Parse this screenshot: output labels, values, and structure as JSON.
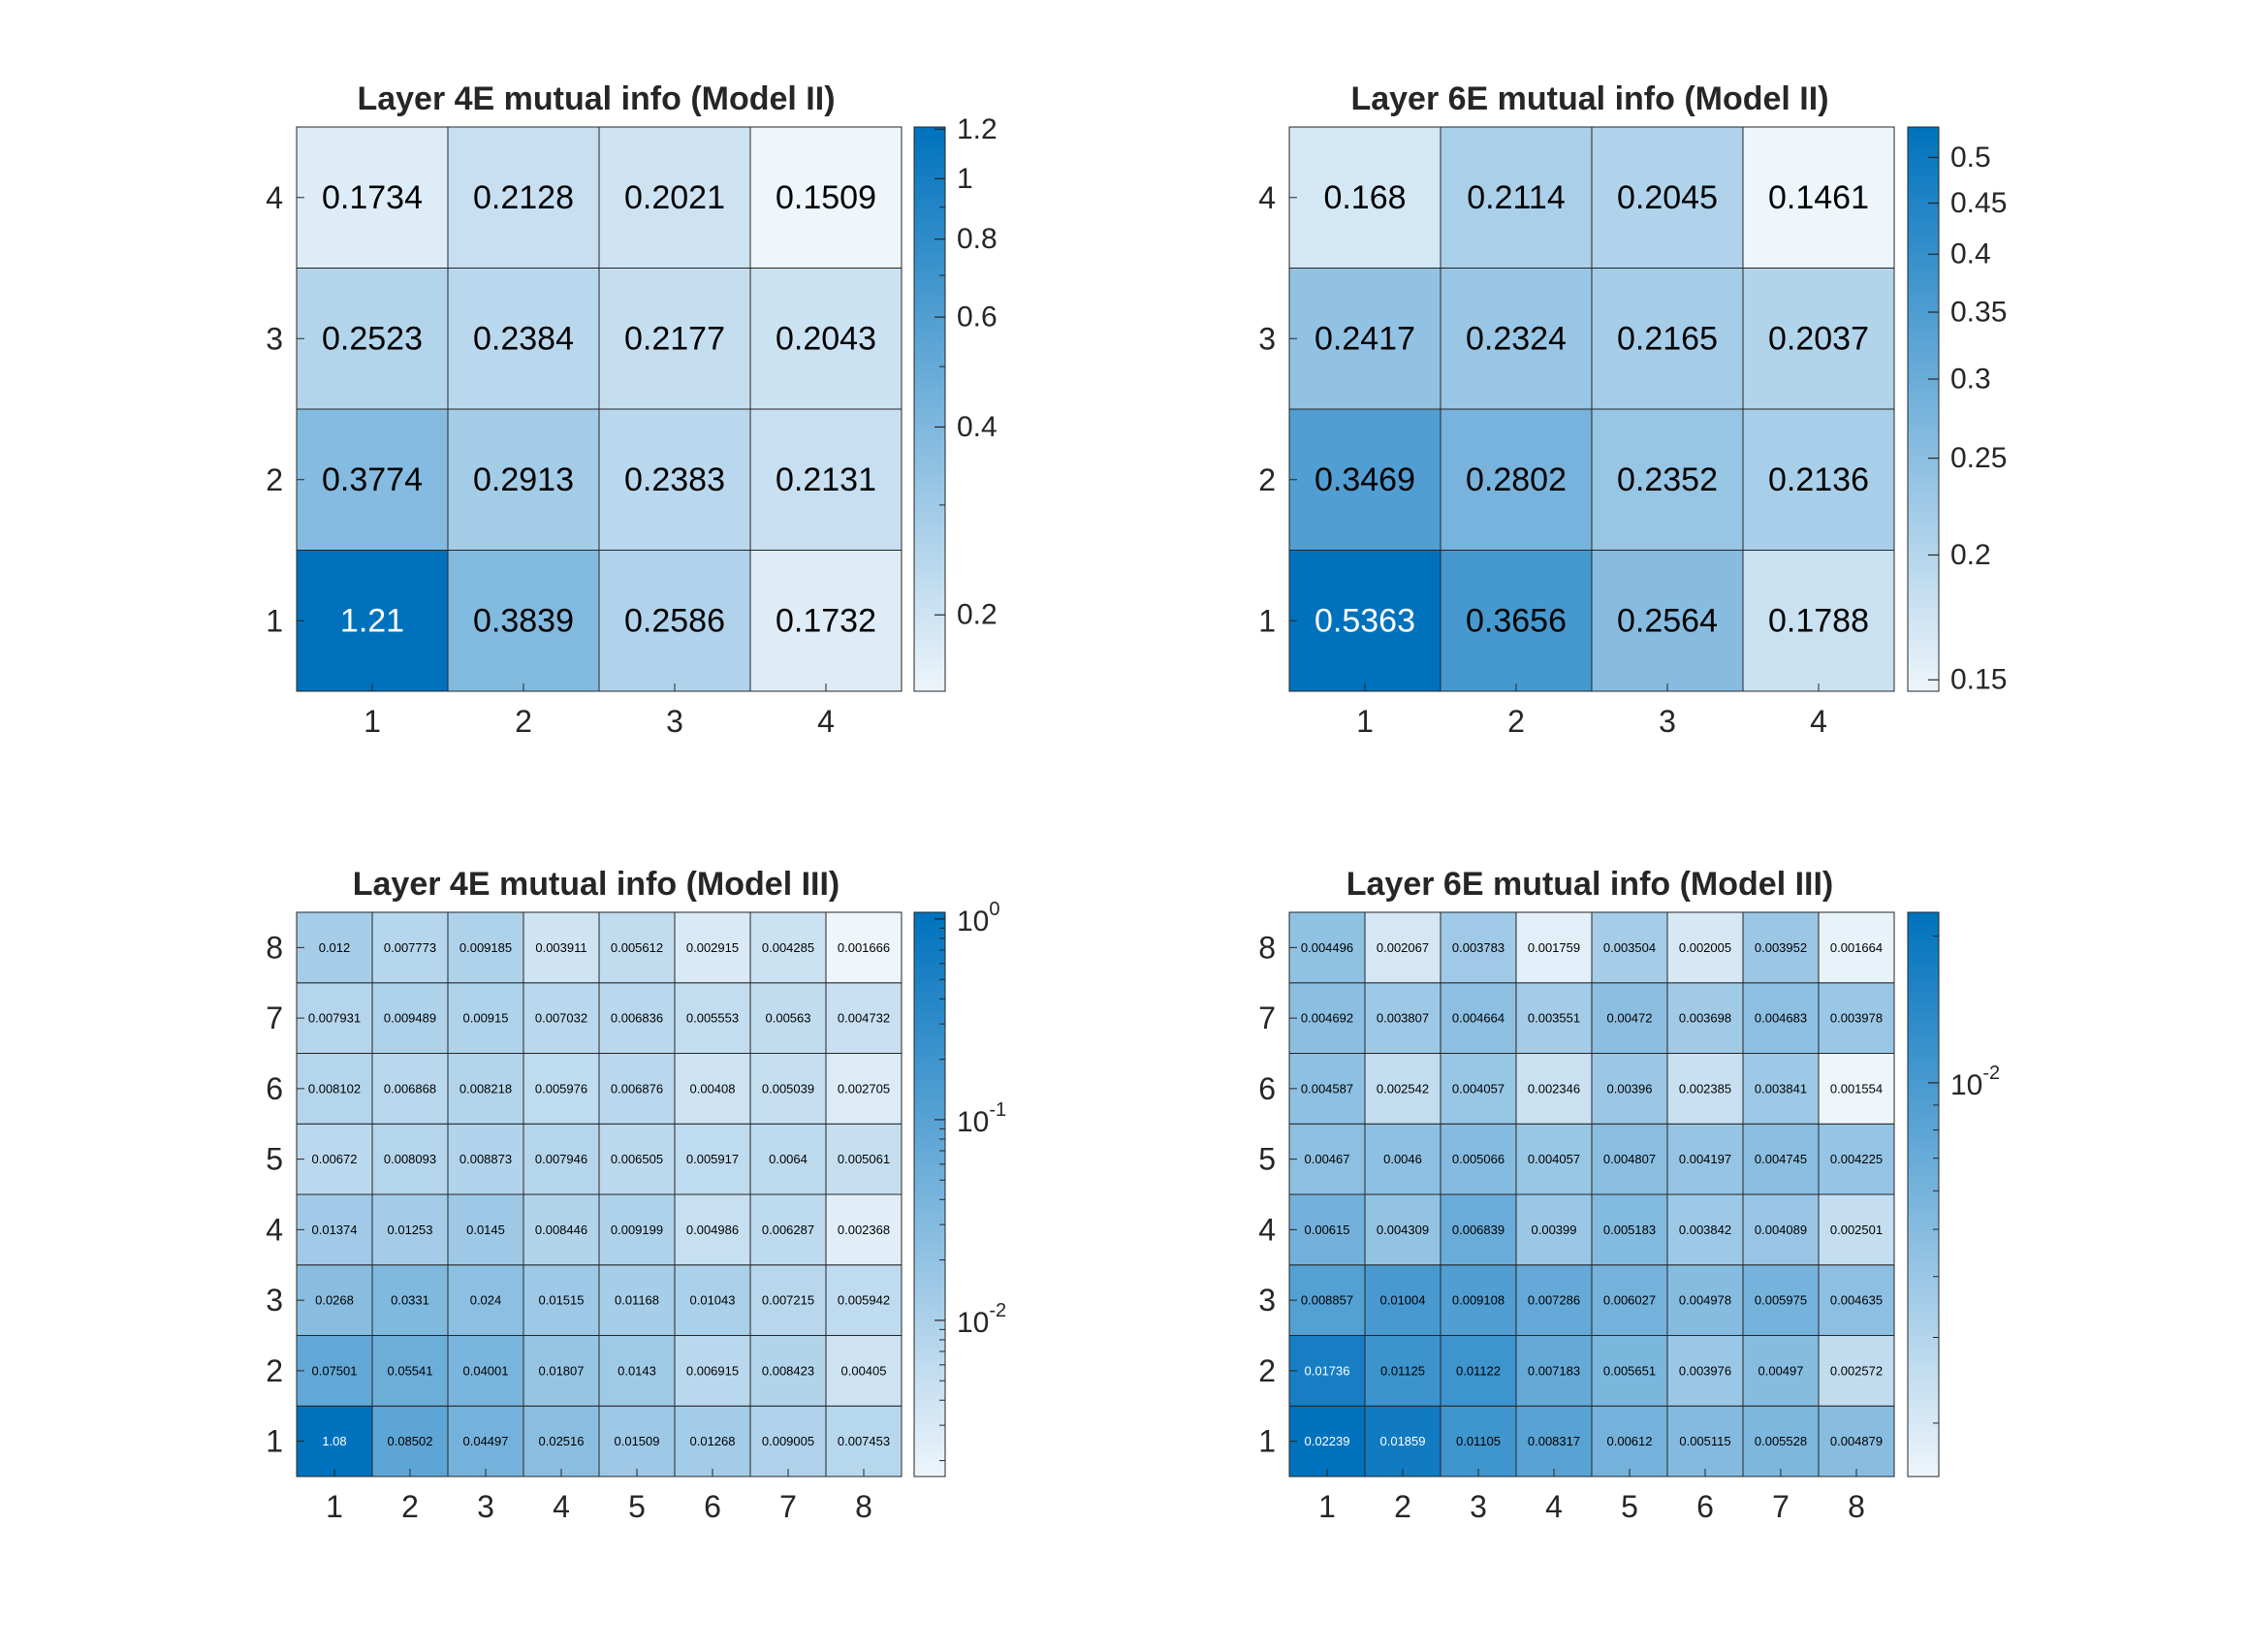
{
  "figure": {
    "background": "#ffffff",
    "colormap": {
      "low": "#eef5fb",
      "high": "#0072bd",
      "text_dark": "#000000",
      "text_light": "#ffffff"
    }
  },
  "chart_data": [
    {
      "type": "heatmap",
      "title": "Layer 4E mutual info (Model II)",
      "x_ticks": [
        "1",
        "2",
        "3",
        "4"
      ],
      "y_ticks": [
        "1",
        "2",
        "3",
        "4"
      ],
      "values_bottom_to_top": [
        [
          1.21,
          0.3839,
          0.2586,
          0.1732
        ],
        [
          0.3774,
          0.2913,
          0.2383,
          0.2131
        ],
        [
          0.2523,
          0.2384,
          0.2177,
          0.2043
        ],
        [
          0.1734,
          0.2128,
          0.2021,
          0.1509
        ]
      ],
      "labels_bottom_to_top": [
        [
          "1.21",
          "0.3839",
          "0.2586",
          "0.1732"
        ],
        [
          "0.3774",
          "0.2913",
          "0.2383",
          "0.2131"
        ],
        [
          "0.2523",
          "0.2384",
          "0.2177",
          "0.2043"
        ],
        [
          "0.1734",
          "0.2128",
          "0.2021",
          "0.1509"
        ]
      ],
      "colorbar": {
        "scale": "log",
        "clim": [
          0.1509,
          1.21
        ],
        "ticks": [
          {
            "value": 0.2,
            "label": "0.2"
          },
          {
            "value": 0.4,
            "label": "0.4"
          },
          {
            "value": 0.6,
            "label": "0.6"
          },
          {
            "value": 0.8,
            "label": "0.8"
          },
          {
            "value": 1.0,
            "label": "1"
          },
          {
            "value": 1.2,
            "label": "1.2"
          }
        ],
        "minor": [
          0.3,
          0.5,
          0.7,
          0.9
        ]
      }
    },
    {
      "type": "heatmap",
      "title": "Layer 6E mutual info (Model II)",
      "x_ticks": [
        "1",
        "2",
        "3",
        "4"
      ],
      "y_ticks": [
        "1",
        "2",
        "3",
        "4"
      ],
      "values_bottom_to_top": [
        [
          0.5363,
          0.3656,
          0.2564,
          0.1788
        ],
        [
          0.3469,
          0.2802,
          0.2352,
          0.2136
        ],
        [
          0.2417,
          0.2324,
          0.2165,
          0.2037
        ],
        [
          0.168,
          0.2114,
          0.2045,
          0.1461
        ]
      ],
      "labels_bottom_to_top": [
        [
          "0.5363",
          "0.3656",
          "0.2564",
          "0.1788"
        ],
        [
          "0.3469",
          "0.2802",
          "0.2352",
          "0.2136"
        ],
        [
          "0.2417",
          "0.2324",
          "0.2165",
          "0.2037"
        ],
        [
          "0.168",
          "0.2114",
          "0.2045",
          "0.1461"
        ]
      ],
      "colorbar": {
        "scale": "log",
        "clim": [
          0.1461,
          0.5363
        ],
        "ticks": [
          {
            "value": 0.15,
            "label": "0.15"
          },
          {
            "value": 0.2,
            "label": "0.2"
          },
          {
            "value": 0.25,
            "label": "0.25"
          },
          {
            "value": 0.3,
            "label": "0.3"
          },
          {
            "value": 0.35,
            "label": "0.35"
          },
          {
            "value": 0.4,
            "label": "0.4"
          },
          {
            "value": 0.45,
            "label": "0.45"
          },
          {
            "value": 0.5,
            "label": "0.5"
          }
        ],
        "minor": []
      }
    },
    {
      "type": "heatmap",
      "title": "Layer 4E mutual info (Model III)",
      "x_ticks": [
        "1",
        "2",
        "3",
        "4",
        "5",
        "6",
        "7",
        "8"
      ],
      "y_ticks": [
        "1",
        "2",
        "3",
        "4",
        "5",
        "6",
        "7",
        "8"
      ],
      "values_bottom_to_top": [
        [
          1.08,
          0.08502,
          0.04497,
          0.02516,
          0.01509,
          0.01268,
          0.009005,
          0.007453
        ],
        [
          0.07501,
          0.05541,
          0.04001,
          0.01807,
          0.0143,
          0.006915,
          0.008423,
          0.00405
        ],
        [
          0.0268,
          0.0331,
          0.024,
          0.01515,
          0.01168,
          0.01043,
          0.007215,
          0.005942
        ],
        [
          0.01374,
          0.01253,
          0.0145,
          0.008446,
          0.009199,
          0.004986,
          0.006287,
          0.002368
        ],
        [
          0.00672,
          0.008093,
          0.008873,
          0.007946,
          0.006505,
          0.005917,
          0.0064,
          0.005061
        ],
        [
          0.008102,
          0.006868,
          0.008218,
          0.005976,
          0.006876,
          0.00408,
          0.005039,
          0.002705
        ],
        [
          0.007931,
          0.009489,
          0.00915,
          0.007032,
          0.006836,
          0.005553,
          0.00563,
          0.004732
        ],
        [
          0.012,
          0.007773,
          0.009185,
          0.003911,
          0.005612,
          0.002915,
          0.004285,
          0.001666
        ]
      ],
      "labels_bottom_to_top": [
        [
          "1.08",
          "0.08502",
          "0.04497",
          "0.02516",
          "0.01509",
          "0.01268",
          "0.009005",
          "0.007453"
        ],
        [
          "0.07501",
          "0.05541",
          "0.04001",
          "0.01807",
          "0.0143",
          "0.006915",
          "0.008423",
          "0.00405"
        ],
        [
          "0.0268",
          "0.0331",
          "0.024",
          "0.01515",
          "0.01168",
          "0.01043",
          "0.007215",
          "0.005942"
        ],
        [
          "0.01374",
          "0.01253",
          "0.0145",
          "0.008446",
          "0.009199",
          "0.004986",
          "0.006287",
          "0.002368"
        ],
        [
          "0.00672",
          "0.008093",
          "0.008873",
          "0.007946",
          "0.006505",
          "0.005917",
          "0.0064",
          "0.005061"
        ],
        [
          "0.008102",
          "0.006868",
          "0.008218",
          "0.005976",
          "0.006876",
          "0.00408",
          "0.005039",
          "0.002705"
        ],
        [
          "0.007931",
          "0.009489",
          "0.00915",
          "0.007032",
          "0.006836",
          "0.005553",
          "0.00563",
          "0.004732"
        ],
        [
          "0.012",
          "0.007773",
          "0.009185",
          "0.003911",
          "0.005612",
          "0.002915",
          "0.004285",
          "0.001666"
        ]
      ],
      "colorbar": {
        "scale": "log",
        "clim": [
          0.001666,
          1.08
        ],
        "ticks": [
          {
            "value": 0.01,
            "base": "10",
            "exp": "-2"
          },
          {
            "value": 0.1,
            "base": "10",
            "exp": "-1"
          },
          {
            "value": 1,
            "base": "10",
            "exp": "0"
          }
        ],
        "minor": [
          0.002,
          0.003,
          0.004,
          0.005,
          0.006,
          0.007,
          0.008,
          0.009,
          0.02,
          0.03,
          0.04,
          0.05,
          0.06,
          0.07,
          0.08,
          0.09,
          0.2,
          0.3,
          0.4,
          0.5,
          0.6,
          0.7,
          0.8,
          0.9
        ]
      }
    },
    {
      "type": "heatmap",
      "title": "Layer 6E mutual info (Model III)",
      "x_ticks": [
        "1",
        "2",
        "3",
        "4",
        "5",
        "6",
        "7",
        "8"
      ],
      "y_ticks": [
        "1",
        "2",
        "3",
        "4",
        "5",
        "6",
        "7",
        "8"
      ],
      "values_bottom_to_top": [
        [
          0.02239,
          0.01859,
          0.01105,
          0.008317,
          0.00612,
          0.005115,
          0.005528,
          0.004879
        ],
        [
          0.01736,
          0.01125,
          0.01122,
          0.007183,
          0.005651,
          0.003976,
          0.00497,
          0.002572
        ],
        [
          0.008857,
          0.01004,
          0.009108,
          0.007286,
          0.006027,
          0.004978,
          0.005975,
          0.004635
        ],
        [
          0.00615,
          0.004309,
          0.006839,
          0.00399,
          0.005183,
          0.003842,
          0.004089,
          0.002501
        ],
        [
          0.00467,
          0.0046,
          0.005066,
          0.004057,
          0.004807,
          0.004197,
          0.004745,
          0.004225
        ],
        [
          0.004587,
          0.002542,
          0.004057,
          0.002346,
          0.00396,
          0.002385,
          0.003841,
          0.001554
        ],
        [
          0.004692,
          0.003807,
          0.004664,
          0.003551,
          0.00472,
          0.003698,
          0.004683,
          0.003978
        ],
        [
          0.004496,
          0.002067,
          0.003783,
          0.001759,
          0.003504,
          0.002005,
          0.003952,
          0.001664
        ]
      ],
      "labels_bottom_to_top": [
        [
          "0.02239",
          "0.01859",
          "0.01105",
          "0.008317",
          "0.00612",
          "0.005115",
          "0.005528",
          "0.004879"
        ],
        [
          "0.01736",
          "0.01125",
          "0.01122",
          "0.007183",
          "0.005651",
          "0.003976",
          "0.00497",
          "0.002572"
        ],
        [
          "0.008857",
          "0.01004",
          "0.009108",
          "0.007286",
          "0.006027",
          "0.004978",
          "0.005975",
          "0.004635"
        ],
        [
          "0.00615",
          "0.004309",
          "0.006839",
          "0.00399",
          "0.005183",
          "0.003842",
          "0.004089",
          "0.002501"
        ],
        [
          "0.00467",
          "0.0046",
          "0.005066",
          "0.004057",
          "0.004807",
          "0.004197",
          "0.004745",
          "0.004225"
        ],
        [
          "0.004587",
          "0.002542",
          "0.004057",
          "0.002346",
          "0.00396",
          "0.002385",
          "0.003841",
          "0.001554"
        ],
        [
          "0.004692",
          "0.003807",
          "0.004664",
          "0.003551",
          "0.00472",
          "0.003698",
          "0.004683",
          "0.003978"
        ],
        [
          "0.004496",
          "0.002067",
          "0.003783",
          "0.001759",
          "0.003504",
          "0.002005",
          "0.003952",
          "0.001664"
        ]
      ],
      "colorbar": {
        "scale": "log",
        "clim": [
          0.001554,
          0.02239
        ],
        "ticks": [
          {
            "value": 0.01,
            "base": "10",
            "exp": "-2"
          }
        ],
        "minor": [
          0.002,
          0.003,
          0.004,
          0.005,
          0.006,
          0.007,
          0.008,
          0.009,
          0.02
        ]
      }
    }
  ]
}
